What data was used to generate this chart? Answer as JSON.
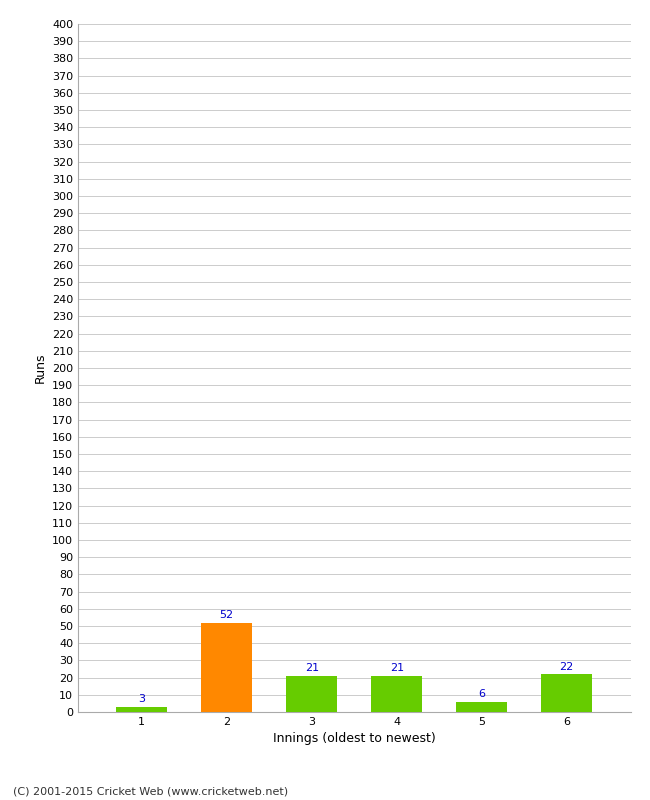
{
  "xlabel": "Innings (oldest to newest)",
  "ylabel": "Runs",
  "categories": [
    1,
    2,
    3,
    4,
    5,
    6
  ],
  "values": [
    3,
    52,
    21,
    21,
    6,
    22
  ],
  "bar_colors": [
    "#66cc00",
    "#ff8800",
    "#66cc00",
    "#66cc00",
    "#66cc00",
    "#66cc00"
  ],
  "label_color": "#0000cc",
  "ylim": [
    0,
    400
  ],
  "yticks": [
    0,
    10,
    20,
    30,
    40,
    50,
    60,
    70,
    80,
    90,
    100,
    110,
    120,
    130,
    140,
    150,
    160,
    170,
    180,
    190,
    200,
    210,
    220,
    230,
    240,
    250,
    260,
    270,
    280,
    290,
    300,
    310,
    320,
    330,
    340,
    350,
    360,
    370,
    380,
    390,
    400
  ],
  "footer": "(C) 2001-2015 Cricket Web (www.cricketweb.net)",
  "background_color": "#ffffff",
  "grid_color": "#cccccc",
  "label_fontsize": 8,
  "axis_fontsize": 8,
  "footer_fontsize": 8,
  "bar_width": 0.6
}
